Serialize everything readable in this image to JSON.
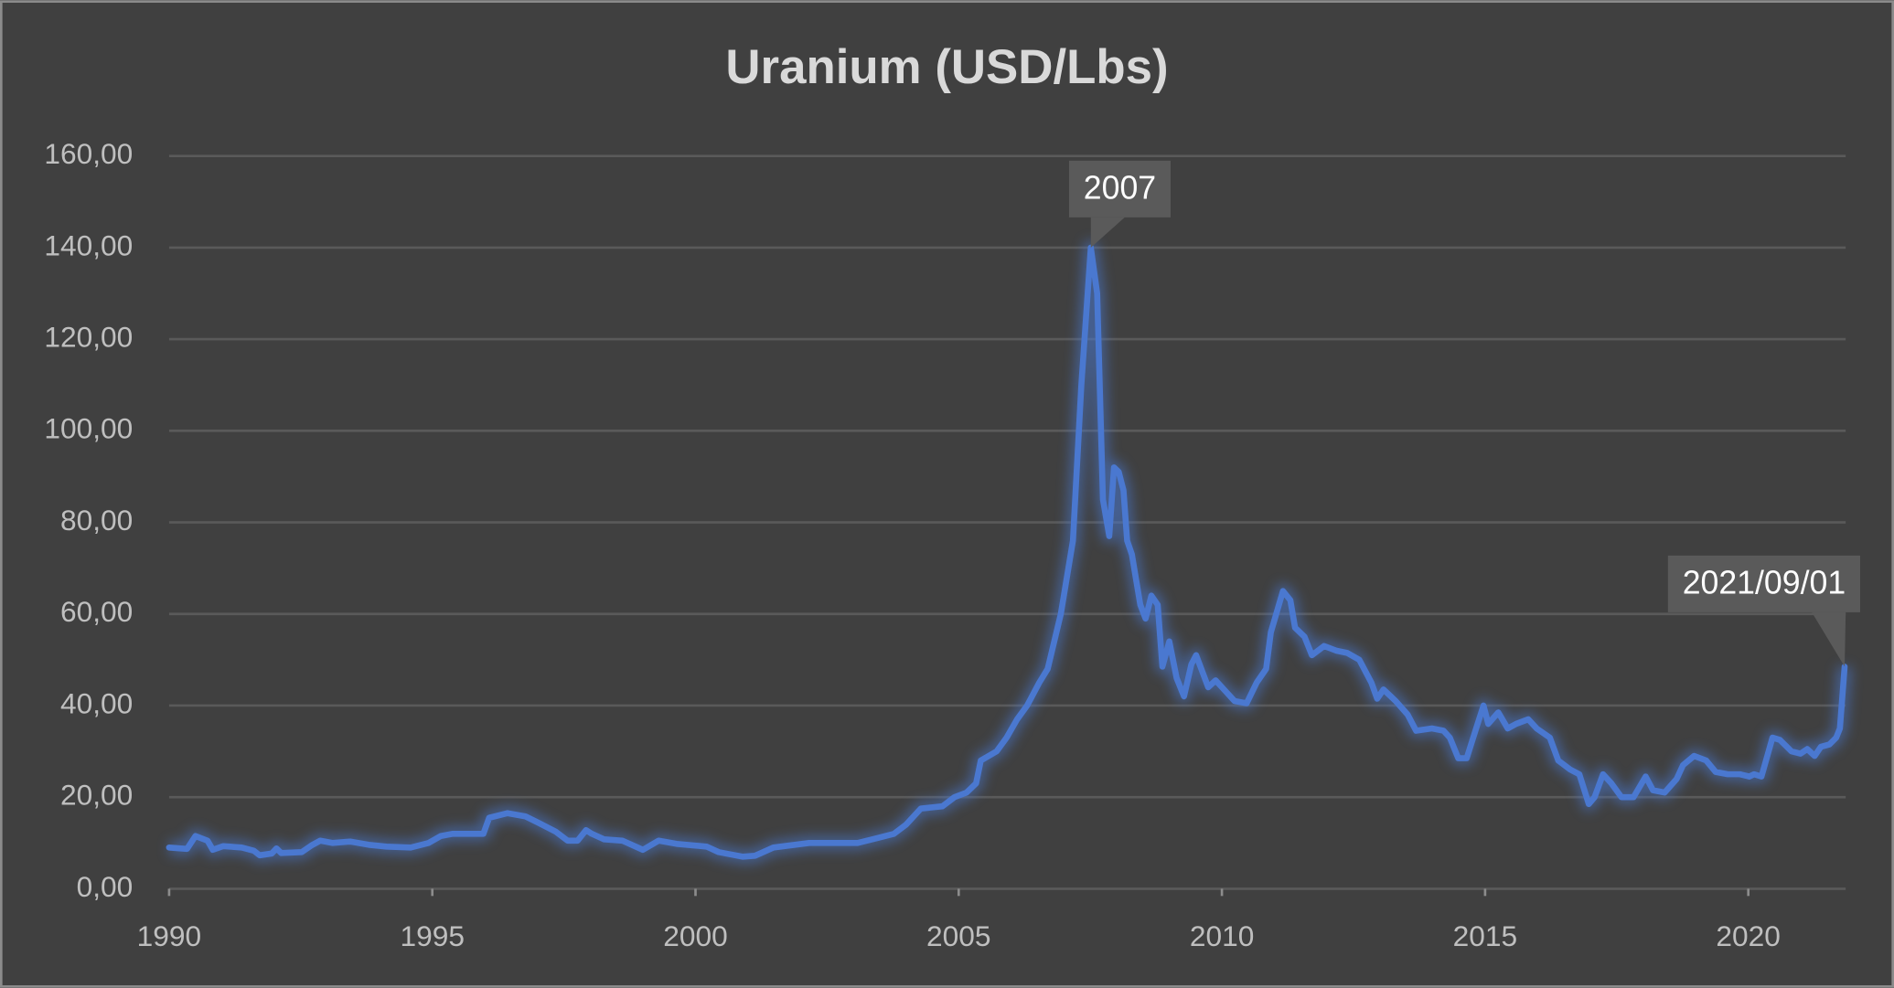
{
  "chart_data": {
    "type": "line",
    "title": "Uranium (USD/Lbs)",
    "xlim": [
      1990,
      2021.85
    ],
    "xticks": [
      1990,
      1995,
      2000,
      2005,
      2010,
      2015,
      2020
    ],
    "ylim": [
      0,
      160
    ],
    "yticks": [
      {
        "value": 0,
        "label": "0,00"
      },
      {
        "value": 20,
        "label": "20,00"
      },
      {
        "value": 40,
        "label": "40,00"
      },
      {
        "value": 60,
        "label": "60,00"
      },
      {
        "value": 80,
        "label": "80,00"
      },
      {
        "value": 100,
        "label": "100,00"
      },
      {
        "value": 120,
        "label": "120,00"
      },
      {
        "value": 140,
        "label": "140,00"
      },
      {
        "value": 160,
        "label": "160,00"
      }
    ],
    "grid": true,
    "series": [
      {
        "color": "#4a78d0",
        "x": [
          1990.0,
          1990.34,
          1990.5,
          1990.73,
          1990.83,
          1991.03,
          1991.38,
          1991.61,
          1991.72,
          1991.95,
          1992.04,
          1992.13,
          1992.52,
          1992.71,
          1992.87,
          1993.1,
          1993.44,
          1993.79,
          1994.13,
          1994.59,
          1994.93,
          1995.16,
          1995.39,
          1995.97,
          1996.08,
          1996.43,
          1996.77,
          1997.0,
          1997.34,
          1997.57,
          1997.76,
          1997.92,
          1998.03,
          1998.26,
          1998.61,
          1999.0,
          1999.3,
          1999.64,
          2000.21,
          2000.44,
          2000.9,
          2001.13,
          2001.48,
          2001.82,
          2002.16,
          2003.08,
          2003.43,
          2003.77,
          2004.0,
          2004.28,
          2004.69,
          2004.92,
          2005.15,
          2005.33,
          2005.42,
          2005.72,
          2005.91,
          2006.11,
          2006.3,
          2006.53,
          2006.69,
          2006.94,
          2007.17,
          2007.33,
          2007.51,
          2007.63,
          2007.74,
          2007.86,
          2007.95,
          2008.04,
          2008.13,
          2008.2,
          2008.29,
          2008.45,
          2008.55,
          2008.66,
          2008.78,
          2008.87,
          2009.0,
          2009.14,
          2009.28,
          2009.42,
          2009.51,
          2009.74,
          2009.88,
          2010.08,
          2010.24,
          2010.47,
          2010.66,
          2010.84,
          2010.93,
          2011.16,
          2011.3,
          2011.39,
          2011.57,
          2011.71,
          2011.94,
          2012.17,
          2012.38,
          2012.61,
          2012.84,
          2012.95,
          2013.07,
          2013.3,
          2013.53,
          2013.69,
          2013.99,
          2014.21,
          2014.33,
          2014.49,
          2014.65,
          2014.83,
          2014.97,
          2015.06,
          2015.25,
          2015.43,
          2015.59,
          2015.82,
          2015.98,
          2016.23,
          2016.39,
          2016.62,
          2016.79,
          2016.97,
          2017.08,
          2017.24,
          2017.4,
          2017.59,
          2017.82,
          2018.05,
          2018.19,
          2018.41,
          2018.64,
          2018.76,
          2018.97,
          2019.2,
          2019.38,
          2019.61,
          2019.84,
          2020.02,
          2020.11,
          2020.25,
          2020.46,
          2020.6,
          2020.82,
          2020.99,
          2021.12,
          2021.26,
          2021.38,
          2021.54,
          2021.67,
          2021.74,
          2021.83
        ],
        "values": [
          9,
          8.7,
          11.5,
          10.5,
          8.5,
          9.3,
          9,
          8.3,
          7.3,
          7.7,
          8.8,
          7.8,
          8,
          9.5,
          10.5,
          10,
          10.3,
          9.6,
          9.2,
          9,
          10,
          11.5,
          12,
          12,
          15.5,
          16.5,
          15.8,
          14.5,
          12.5,
          10.5,
          10.5,
          12.8,
          12,
          10.8,
          10.5,
          8.5,
          10.5,
          9.8,
          9.2,
          8,
          7,
          7.2,
          9,
          9.5,
          10,
          10,
          11,
          12,
          14,
          17.5,
          18,
          20,
          21,
          23,
          28,
          30,
          33,
          37,
          40,
          45,
          48,
          60,
          76,
          110,
          140,
          130,
          85,
          77,
          92,
          91,
          87,
          76,
          73,
          62,
          59,
          64,
          62,
          48.5,
          54,
          46,
          42,
          49,
          51,
          44,
          45.5,
          43,
          41,
          40.5,
          45,
          48,
          56,
          65,
          63,
          57,
          55,
          51,
          53,
          52,
          51.5,
          50,
          45,
          41.5,
          43.5,
          41,
          38,
          34.5,
          35,
          34.5,
          33,
          28.5,
          28.5,
          35,
          40,
          36,
          38.5,
          35,
          36,
          37,
          35,
          33,
          28,
          26,
          25,
          18.5,
          20,
          25,
          23,
          20,
          20,
          24.5,
          21.5,
          21,
          24,
          27,
          29,
          28,
          25.5,
          25,
          25,
          24.5,
          25,
          24.5,
          33,
          32.5,
          30,
          29.5,
          30.5,
          29,
          31,
          31.5,
          33,
          35,
          48.5
        ]
      }
    ],
    "annotations": [
      {
        "text": "2007",
        "x": 2007.51,
        "y": 140
      },
      {
        "text": "2021/09/01",
        "x": 2021.83,
        "y": 48.5
      }
    ]
  }
}
